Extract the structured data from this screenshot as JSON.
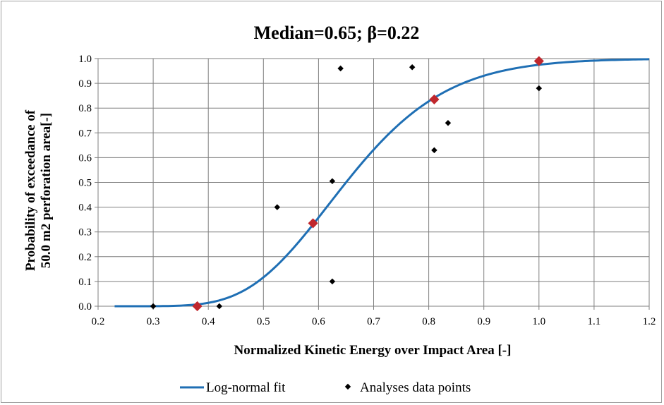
{
  "chart_data": {
    "type": "scatter",
    "title": "Median=0.65; β=0.22",
    "xlabel": "Normalized Kinetic Energy over Impact Area [-]",
    "ylabel": [
      "Probability of exceedance  of",
      "50.0  m2 perforation area[-]"
    ],
    "xlim": [
      0.2,
      1.2
    ],
    "ylim": [
      0.0,
      1.0
    ],
    "xticks": [
      "0.2",
      "0.3",
      "0.4",
      "0.5",
      "0.6",
      "0.7",
      "0.8",
      "0.9",
      "1.0",
      "1.1",
      "1.2"
    ],
    "yticks": [
      "0.0",
      "0.1",
      "0.2",
      "0.3",
      "0.4",
      "0.5",
      "0.6",
      "0.7",
      "0.8",
      "0.9",
      "1.0"
    ],
    "grid": true,
    "legend_position": "bottom",
    "series": [
      {
        "name": "Log-normal fit",
        "kind": "line",
        "color": "#1f6fb4",
        "median": 0.65,
        "beta": 0.22,
        "x_range": [
          0.23,
          1.2
        ]
      },
      {
        "name": "Analyses data points",
        "kind": "scatter",
        "color": "#000000",
        "x": [
          0.3,
          0.42,
          0.525,
          0.625,
          0.625,
          0.64,
          0.77,
          0.81,
          0.835,
          1.0,
          1.0
        ],
        "y": [
          0.0,
          0.0,
          0.4,
          0.505,
          0.1,
          0.96,
          0.965,
          0.63,
          0.74,
          0.88,
          0.995
        ]
      },
      {
        "kind": "highlight",
        "color": "#c0272d",
        "x": [
          0.38,
          0.59,
          0.81,
          1.0
        ],
        "y": [
          0.0,
          0.335,
          0.835,
          0.99
        ]
      }
    ]
  }
}
